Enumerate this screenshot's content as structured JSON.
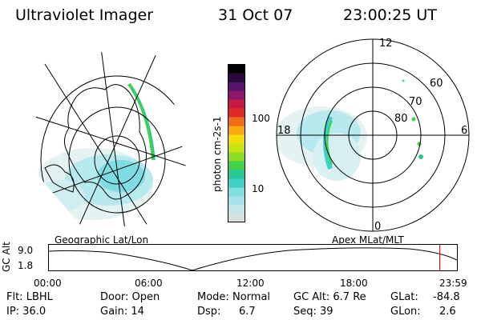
{
  "header": {
    "instrument": "Ultraviolet Imager",
    "date": "31 Oct 07",
    "time": "23:00:25 UT"
  },
  "colorbar": {
    "label": "photon cm-2s-1",
    "ticks": [
      "100",
      "10"
    ],
    "colors": [
      "#d8e0e0",
      "#c4e6ea",
      "#a6e2ea",
      "#7edfe0",
      "#3ecfc6",
      "#27c89a",
      "#3fd24a",
      "#8fdc24",
      "#c9e50d",
      "#f2dc0a",
      "#f6a911",
      "#f16c18",
      "#e02a28",
      "#c71b43",
      "#8b176c",
      "#55136a",
      "#2a0a3a",
      "#000000"
    ]
  },
  "geo_panel": {
    "caption": "Geographic Lat/Lon"
  },
  "polar_panel": {
    "caption": "Apex  MLat/MLT",
    "mlt_labels": {
      "top": "12",
      "left": "18",
      "right": "6",
      "bottom": "0"
    },
    "lat_labels": [
      "60",
      "70",
      "80"
    ]
  },
  "timeline": {
    "ylabel": "GC Alt",
    "yticks": [
      "9.0",
      "1.8"
    ],
    "xticks": [
      "00:00",
      "06:00",
      "12:00",
      "18:00",
      "23:59"
    ],
    "marker_fraction": 0.958,
    "marker_color": "#e01010"
  },
  "status": {
    "flt": "Flt: LBHL",
    "ip": "IP: 36.0",
    "door": "Door: Open",
    "gain": "Gain: 14",
    "mode_label": "Mode:",
    "mode_value": "Normal",
    "dsp_label": "Dsp:",
    "dsp_value": "6.7",
    "gcalt": "GC Alt: 6.7 Re",
    "seq": "Seq: 39",
    "glat_label": "GLat:",
    "glat_value": "-84.8",
    "glon_label": "GLon:",
    "glon_value": "2.6"
  }
}
